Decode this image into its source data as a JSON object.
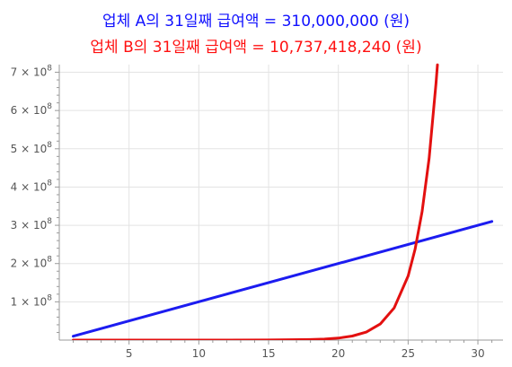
{
  "chart_data": {
    "type": "line",
    "title_lines": [
      {
        "text": "업체 A의 31일째 급여액 = 310,000,000 (원)",
        "color": "#1010ff"
      },
      {
        "text": "업체 B의 31일째 급여액 = 10,737,418,240 (원)",
        "color": "#ff1010"
      }
    ],
    "xlabel": "",
    "ylabel": "",
    "xlim": [
      0,
      31.8
    ],
    "ylim": [
      0,
      720000000
    ],
    "x_ticks": [
      {
        "value": 5,
        "label": "5"
      },
      {
        "value": 10,
        "label": "10"
      },
      {
        "value": 15,
        "label": "15"
      },
      {
        "value": 20,
        "label": "20"
      },
      {
        "value": 25,
        "label": "25"
      },
      {
        "value": 30,
        "label": "30"
      }
    ],
    "y_ticks": [
      {
        "value": 100000000,
        "mantissa": "1",
        "base": "× 10",
        "exp": "8"
      },
      {
        "value": 200000000,
        "mantissa": "2",
        "base": "× 10",
        "exp": "8"
      },
      {
        "value": 300000000,
        "mantissa": "3",
        "base": "× 10",
        "exp": "8"
      },
      {
        "value": 400000000,
        "mantissa": "4",
        "base": "× 10",
        "exp": "8"
      },
      {
        "value": 500000000,
        "mantissa": "5",
        "base": "× 10",
        "exp": "8"
      },
      {
        "value": 600000000,
        "mantissa": "6",
        "base": "× 10",
        "exp": "8"
      },
      {
        "value": 700000000,
        "mantissa": "7",
        "base": "× 10",
        "exp": "8"
      }
    ],
    "grid": true,
    "series": [
      {
        "key": "A",
        "color": "#1c1cf0",
        "x": [
          1,
          31
        ],
        "y": [
          10000000,
          310000000
        ]
      },
      {
        "key": "B",
        "color": "#e31010",
        "x": [
          1,
          5,
          10,
          15,
          18,
          19,
          20,
          21,
          22,
          23,
          24,
          25,
          25.5,
          26,
          26.5,
          27,
          27.1
        ],
        "y": [
          10,
          160,
          5120,
          163840,
          1310720,
          2621440,
          5242880,
          10485760,
          20971520,
          41943040,
          83886080,
          167772160,
          237268104,
          335544320,
          474536209,
          671088640,
          719200000
        ]
      }
    ]
  }
}
